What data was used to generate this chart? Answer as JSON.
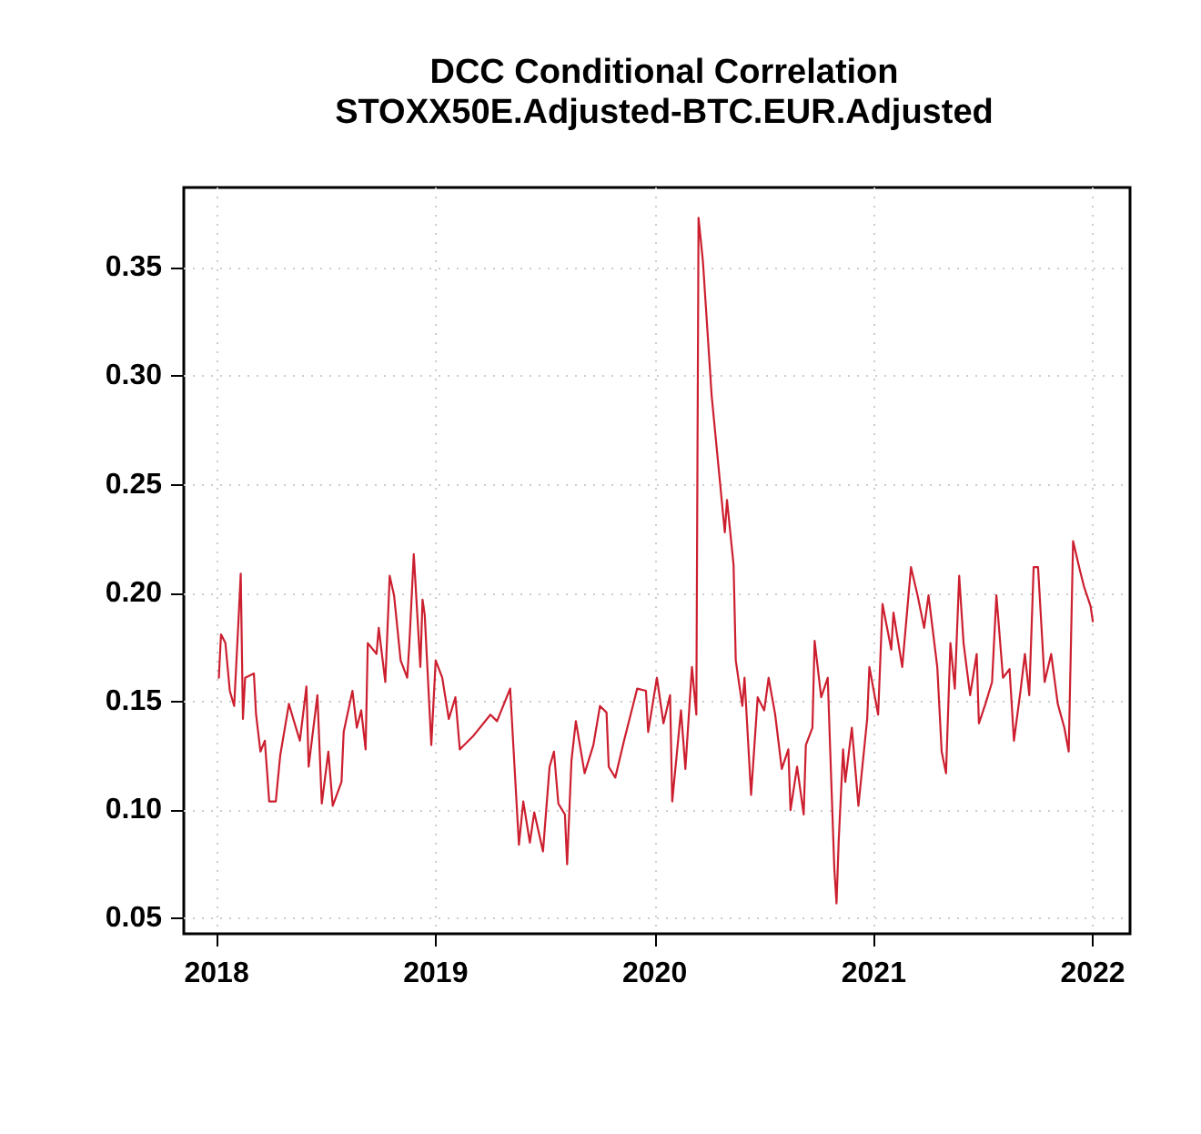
{
  "chart_data": {
    "type": "line",
    "title": "DCC Conditional Correlation\nSTOXX50E.Adjusted-BTC.EUR.Adjusted",
    "x": [
      2018.01,
      2018.02,
      2018.04,
      2018.06,
      2018.08,
      2018.1,
      2018.11,
      2018.12,
      2018.13,
      2018.17,
      2018.18,
      2018.2,
      2018.22,
      2018.24,
      2018.27,
      2018.29,
      2018.33,
      2018.35,
      2018.38,
      2018.41,
      2018.42,
      2018.46,
      2018.48,
      2018.51,
      2018.53,
      2018.57,
      2018.58,
      2018.62,
      2018.64,
      2018.66,
      2018.68,
      2018.69,
      2018.73,
      2018.74,
      2018.77,
      2018.79,
      2018.81,
      2018.84,
      2018.87,
      2018.88,
      2018.9,
      2018.93,
      2018.94,
      2018.95,
      2018.98,
      2019.0,
      2019.03,
      2019.06,
      2019.09,
      2019.11,
      2019.17,
      2019.25,
      2019.28,
      2019.34,
      2019.36,
      2019.38,
      2019.4,
      2019.43,
      2019.45,
      2019.49,
      2019.52,
      2019.54,
      2019.56,
      2019.59,
      2019.6,
      2019.62,
      2019.64,
      2019.68,
      2019.72,
      2019.75,
      2019.78,
      2019.79,
      2019.82,
      2019.86,
      2019.92,
      2019.96,
      2019.97,
      2020.01,
      2020.04,
      2020.07,
      2020.08,
      2020.12,
      2020.14,
      2020.17,
      2020.19,
      2020.2,
      2020.22,
      2020.26,
      2020.32,
      2020.33,
      2020.36,
      2020.37,
      2020.4,
      2020.41,
      2020.44,
      2020.47,
      2020.5,
      2020.52,
      2020.55,
      2020.58,
      2020.61,
      2020.62,
      2020.65,
      2020.68,
      2020.69,
      2020.72,
      2020.73,
      2020.76,
      2020.79,
      2020.8,
      2020.82,
      2020.83,
      2020.84,
      2020.86,
      2020.87,
      2020.9,
      2020.93,
      2020.97,
      2020.98,
      2021.02,
      2021.04,
      2021.08,
      2021.09,
      2021.13,
      2021.17,
      2021.2,
      2021.23,
      2021.25,
      2021.29,
      2021.31,
      2021.33,
      2021.35,
      2021.37,
      2021.39,
      2021.41,
      2021.44,
      2021.47,
      2021.48,
      2021.51,
      2021.54,
      2021.56,
      2021.59,
      2021.62,
      2021.64,
      2021.67,
      2021.69,
      2021.71,
      2021.73,
      2021.75,
      2021.77,
      2021.78,
      2021.81,
      2021.84,
      2021.87,
      2021.89,
      2021.91,
      2021.94,
      2021.96,
      2021.99,
      2022.0
    ],
    "series": [
      {
        "color": "#cc1f2f",
        "values": [
          0.161,
          0.181,
          0.177,
          0.155,
          0.148,
          0.188,
          0.209,
          0.142,
          0.161,
          0.163,
          0.144,
          0.127,
          0.132,
          0.104,
          0.104,
          0.125,
          0.149,
          0.142,
          0.132,
          0.157,
          0.12,
          0.153,
          0.103,
          0.127,
          0.102,
          0.113,
          0.136,
          0.155,
          0.138,
          0.146,
          0.128,
          0.177,
          0.172,
          0.184,
          0.159,
          0.208,
          0.199,
          0.169,
          0.161,
          0.177,
          0.218,
          0.166,
          0.197,
          0.19,
          0.13,
          0.169,
          0.161,
          0.142,
          0.152,
          0.128,
          0.134,
          0.144,
          0.141,
          0.156,
          0.12,
          0.084,
          0.104,
          0.085,
          0.099,
          0.081,
          0.12,
          0.127,
          0.103,
          0.098,
          0.075,
          0.123,
          0.141,
          0.117,
          0.13,
          0.148,
          0.145,
          0.12,
          0.115,
          0.132,
          0.156,
          0.155,
          0.136,
          0.161,
          0.14,
          0.153,
          0.104,
          0.146,
          0.119,
          0.166,
          0.144,
          0.373,
          0.353,
          0.291,
          0.228,
          0.243,
          0.213,
          0.169,
          0.148,
          0.161,
          0.107,
          0.152,
          0.146,
          0.161,
          0.144,
          0.119,
          0.128,
          0.1,
          0.12,
          0.098,
          0.13,
          0.138,
          0.178,
          0.152,
          0.161,
          0.131,
          0.073,
          0.057,
          0.086,
          0.128,
          0.113,
          0.138,
          0.102,
          0.142,
          0.166,
          0.144,
          0.195,
          0.174,
          0.191,
          0.166,
          0.212,
          0.199,
          0.184,
          0.199,
          0.166,
          0.127,
          0.117,
          0.177,
          0.156,
          0.208,
          0.177,
          0.153,
          0.172,
          0.14,
          0.149,
          0.159,
          0.199,
          0.161,
          0.165,
          0.132,
          0.155,
          0.172,
          0.153,
          0.212,
          0.212,
          0.177,
          0.159,
          0.172,
          0.149,
          0.138,
          0.127,
          0.224,
          0.211,
          0.203,
          0.194,
          0.187
        ]
      }
    ],
    "xlim": [
      2017.85,
      2022.17
    ],
    "xticks": [
      2018,
      2019,
      2020,
      2021,
      2022
    ],
    "ylim": [
      0.043,
      0.387
    ],
    "yticks": [
      0.05,
      {
        "value": 0.1,
        "label": "0.10"
      },
      0.15,
      {
        "value": 0.2,
        "label": "0.20"
      },
      0.25,
      {
        "value": 0.3,
        "label": "0.30"
      },
      0.35
    ],
    "grid": true,
    "marker": "none",
    "line_style": "solid"
  }
}
